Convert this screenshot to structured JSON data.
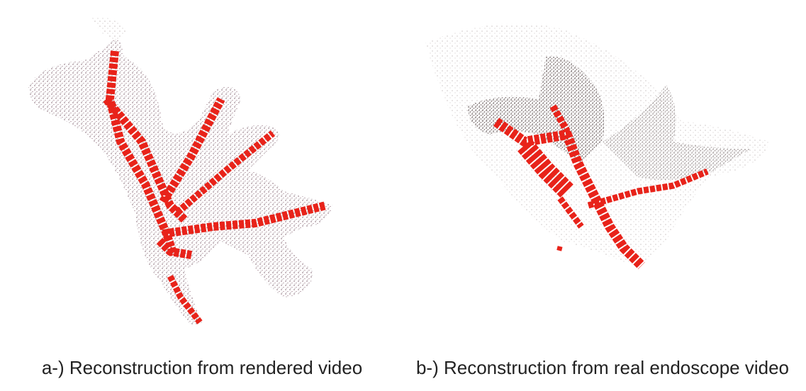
{
  "panels": [
    {
      "caption": "a-) Reconstruction from rendered video"
    },
    {
      "caption": "b-) Reconstruction from real endoscope video"
    }
  ]
}
